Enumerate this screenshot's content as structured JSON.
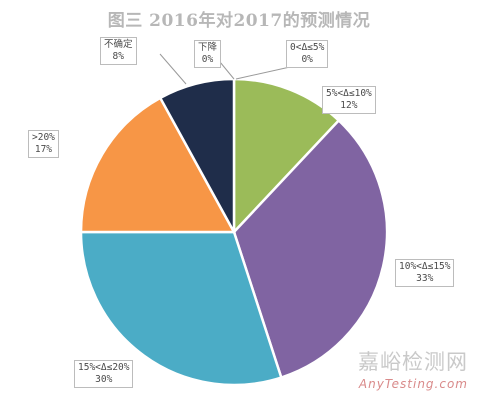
{
  "chart_data": {
    "type": "pie",
    "title": "图三  2016年对2017的预测情况",
    "slices": [
      {
        "label": "0<Δ≤5%",
        "value": 0,
        "pct_text": "0%",
        "color": "#ffffff"
      },
      {
        "label": "5%<Δ≤10%",
        "value": 12,
        "pct_text": "12%",
        "color": "#9bbb59"
      },
      {
        "label": "10%<Δ≤15%",
        "value": 33,
        "pct_text": "33%",
        "color": "#8064a2"
      },
      {
        "label": "15%<Δ≤20%",
        "value": 30,
        "pct_text": "30%",
        "color": "#4bacc6"
      },
      {
        "label": ">20%",
        "value": 17,
        "pct_text": "17%",
        "color": "#f79646"
      },
      {
        "label": "不确定",
        "value": 8,
        "pct_text": "8%",
        "color": "#1f2d4a"
      },
      {
        "label": "下降",
        "value": 0,
        "pct_text": "0%",
        "color": "#ffffff"
      }
    ]
  },
  "watermark": {
    "cn": "嘉峪检测网",
    "en": "AnyTesting.com"
  }
}
